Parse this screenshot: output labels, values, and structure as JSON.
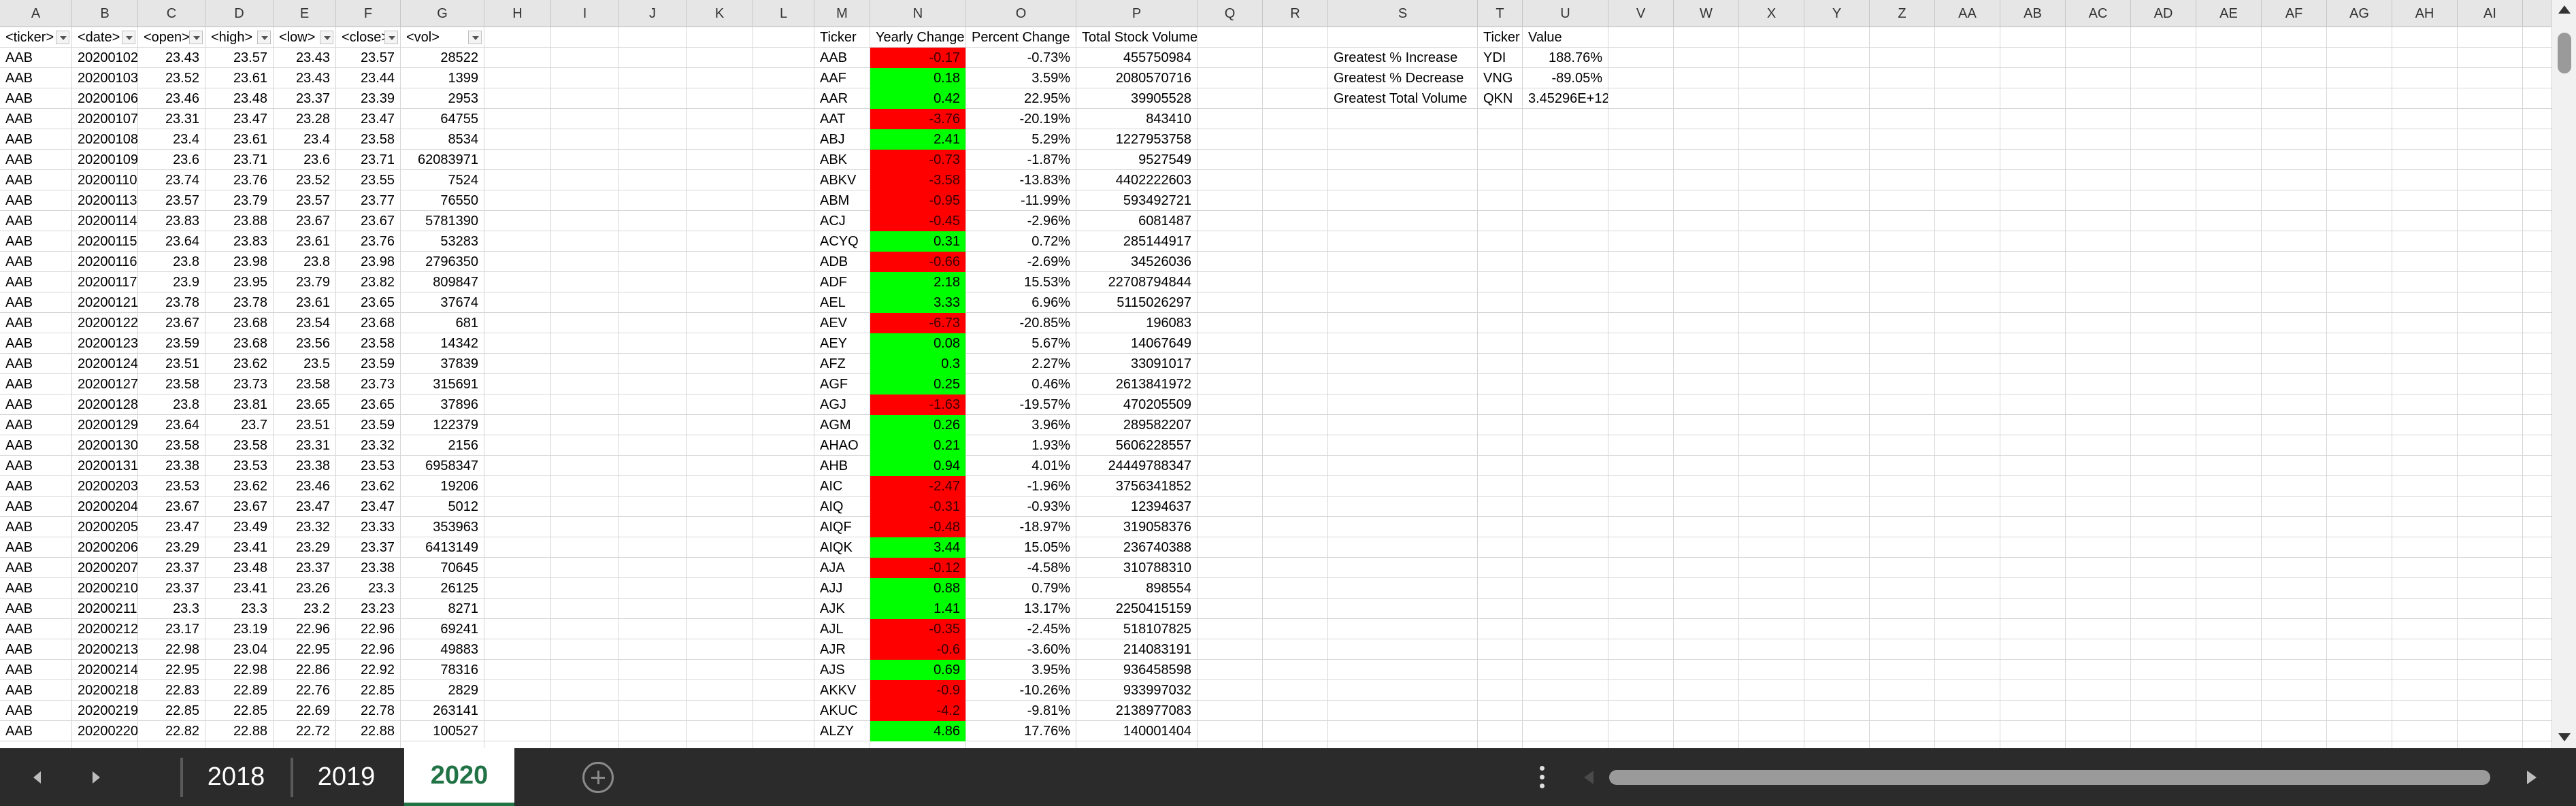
{
  "columns": [
    "A",
    "B",
    "C",
    "D",
    "E",
    "F",
    "G",
    "H",
    "I",
    "J",
    "K",
    "L",
    "M",
    "N",
    "O",
    "P",
    "Q",
    "R",
    "S",
    "T",
    "U",
    "V",
    "W",
    "X",
    "Y",
    "Z",
    "AA",
    "AB",
    "AC",
    "AD",
    "AE",
    "AF",
    "AG",
    "AH",
    "AI"
  ],
  "raw_headers": [
    "<ticker>",
    "<date>",
    "<open>",
    "<high>",
    "<low>",
    "<close>",
    "<vol>"
  ],
  "summary_headers": [
    "Ticker",
    "Yearly Change",
    "Percent Change",
    "Total Stock Volume"
  ],
  "raw_rows": [
    [
      "AAB",
      "20200102",
      "23.43",
      "23.57",
      "23.43",
      "23.57",
      "28522"
    ],
    [
      "AAB",
      "20200103",
      "23.52",
      "23.61",
      "23.43",
      "23.44",
      "1399"
    ],
    [
      "AAB",
      "20200106",
      "23.46",
      "23.48",
      "23.37",
      "23.39",
      "2953"
    ],
    [
      "AAB",
      "20200107",
      "23.31",
      "23.47",
      "23.28",
      "23.47",
      "64755"
    ],
    [
      "AAB",
      "20200108",
      "23.4",
      "23.61",
      "23.4",
      "23.58",
      "8534"
    ],
    [
      "AAB",
      "20200109",
      "23.6",
      "23.71",
      "23.6",
      "23.71",
      "62083971"
    ],
    [
      "AAB",
      "20200110",
      "23.74",
      "23.76",
      "23.52",
      "23.55",
      "7524"
    ],
    [
      "AAB",
      "20200113",
      "23.57",
      "23.79",
      "23.57",
      "23.77",
      "76550"
    ],
    [
      "AAB",
      "20200114",
      "23.83",
      "23.88",
      "23.67",
      "23.67",
      "5781390"
    ],
    [
      "AAB",
      "20200115",
      "23.64",
      "23.83",
      "23.61",
      "23.76",
      "53283"
    ],
    [
      "AAB",
      "20200116",
      "23.8",
      "23.98",
      "23.8",
      "23.98",
      "2796350"
    ],
    [
      "AAB",
      "20200117",
      "23.9",
      "23.95",
      "23.79",
      "23.82",
      "809847"
    ],
    [
      "AAB",
      "20200121",
      "23.78",
      "23.78",
      "23.61",
      "23.65",
      "37674"
    ],
    [
      "AAB",
      "20200122",
      "23.67",
      "23.68",
      "23.54",
      "23.68",
      "681"
    ],
    [
      "AAB",
      "20200123",
      "23.59",
      "23.68",
      "23.56",
      "23.58",
      "14342"
    ],
    [
      "AAB",
      "20200124",
      "23.51",
      "23.62",
      "23.5",
      "23.59",
      "37839"
    ],
    [
      "AAB",
      "20200127",
      "23.58",
      "23.73",
      "23.58",
      "23.73",
      "315691"
    ],
    [
      "AAB",
      "20200128",
      "23.8",
      "23.81",
      "23.65",
      "23.65",
      "37896"
    ],
    [
      "AAB",
      "20200129",
      "23.64",
      "23.7",
      "23.51",
      "23.59",
      "122379"
    ],
    [
      "AAB",
      "20200130",
      "23.58",
      "23.58",
      "23.31",
      "23.32",
      "2156"
    ],
    [
      "AAB",
      "20200131",
      "23.38",
      "23.53",
      "23.38",
      "23.53",
      "6958347"
    ],
    [
      "AAB",
      "20200203",
      "23.53",
      "23.62",
      "23.46",
      "23.62",
      "19206"
    ],
    [
      "AAB",
      "20200204",
      "23.67",
      "23.67",
      "23.47",
      "23.47",
      "5012"
    ],
    [
      "AAB",
      "20200205",
      "23.47",
      "23.49",
      "23.32",
      "23.33",
      "353963"
    ],
    [
      "AAB",
      "20200206",
      "23.29",
      "23.41",
      "23.29",
      "23.37",
      "6413149"
    ],
    [
      "AAB",
      "20200207",
      "23.37",
      "23.48",
      "23.37",
      "23.38",
      "70645"
    ],
    [
      "AAB",
      "20200210",
      "23.37",
      "23.41",
      "23.26",
      "23.3",
      "26125"
    ],
    [
      "AAB",
      "20200211",
      "23.3",
      "23.3",
      "23.2",
      "23.23",
      "8271"
    ],
    [
      "AAB",
      "20200212",
      "23.17",
      "23.19",
      "22.96",
      "22.96",
      "69241"
    ],
    [
      "AAB",
      "20200213",
      "22.98",
      "23.04",
      "22.95",
      "22.96",
      "49883"
    ],
    [
      "AAB",
      "20200214",
      "22.95",
      "22.98",
      "22.86",
      "22.92",
      "78316"
    ],
    [
      "AAB",
      "20200218",
      "22.83",
      "22.89",
      "22.76",
      "22.85",
      "2829"
    ],
    [
      "AAB",
      "20200219",
      "22.85",
      "22.85",
      "22.69",
      "22.78",
      "263141"
    ],
    [
      "AAB",
      "20200220",
      "22.82",
      "22.88",
      "22.72",
      "22.88",
      "100527"
    ]
  ],
  "summary_rows": [
    [
      "AAB",
      "-0.17",
      "-0.73%",
      "455750984",
      "neg"
    ],
    [
      "AAF",
      "0.18",
      "3.59%",
      "2080570716",
      "pos"
    ],
    [
      "AAR",
      "0.42",
      "22.95%",
      "39905528",
      "pos"
    ],
    [
      "AAT",
      "-3.76",
      "-20.19%",
      "843410",
      "neg"
    ],
    [
      "ABJ",
      "2.41",
      "5.29%",
      "1227953758",
      "pos"
    ],
    [
      "ABK",
      "-0.73",
      "-1.87%",
      "9527549",
      "neg"
    ],
    [
      "ABKV",
      "-3.58",
      "-13.83%",
      "4402222603",
      "neg"
    ],
    [
      "ABM",
      "-0.95",
      "-11.99%",
      "593492721",
      "neg"
    ],
    [
      "ACJ",
      "-0.45",
      "-2.96%",
      "6081487",
      "neg"
    ],
    [
      "ACYQ",
      "0.31",
      "0.72%",
      "285144917",
      "pos"
    ],
    [
      "ADB",
      "-0.66",
      "-2.69%",
      "34526036",
      "neg"
    ],
    [
      "ADF",
      "2.18",
      "15.53%",
      "22708794844",
      "pos"
    ],
    [
      "AEL",
      "3.33",
      "6.96%",
      "5115026297",
      "pos"
    ],
    [
      "AEV",
      "-6.73",
      "-20.85%",
      "196083",
      "neg"
    ],
    [
      "AEY",
      "0.08",
      "5.67%",
      "14067649",
      "pos"
    ],
    [
      "AFZ",
      "0.3",
      "2.27%",
      "33091017",
      "pos"
    ],
    [
      "AGF",
      "0.25",
      "0.46%",
      "2613841972",
      "pos"
    ],
    [
      "AGJ",
      "-1.63",
      "-19.57%",
      "470205509",
      "neg"
    ],
    [
      "AGM",
      "0.26",
      "3.96%",
      "289582207",
      "pos"
    ],
    [
      "AHAO",
      "0.21",
      "1.93%",
      "5606228557",
      "pos"
    ],
    [
      "AHB",
      "0.94",
      "4.01%",
      "24449788347",
      "pos"
    ],
    [
      "AIC",
      "-2.47",
      "-1.96%",
      "3756341852",
      "neg"
    ],
    [
      "AIQ",
      "-0.31",
      "-0.93%",
      "12394637",
      "neg"
    ],
    [
      "AIQF",
      "-0.48",
      "-18.97%",
      "319058376",
      "neg"
    ],
    [
      "AIQK",
      "3.44",
      "15.05%",
      "236740388",
      "pos"
    ],
    [
      "AJA",
      "-0.12",
      "-4.58%",
      "310788310",
      "neg"
    ],
    [
      "AJJ",
      "0.88",
      "0.79%",
      "898554",
      "pos"
    ],
    [
      "AJK",
      "1.41",
      "13.17%",
      "2250415159",
      "pos"
    ],
    [
      "AJL",
      "-0.35",
      "-2.45%",
      "518107825",
      "neg"
    ],
    [
      "AJR",
      "-0.6",
      "-3.60%",
      "214083191",
      "neg"
    ],
    [
      "AJS",
      "0.69",
      "3.95%",
      "936458598",
      "pos"
    ],
    [
      "AKKV",
      "-0.9",
      "-10.26%",
      "933997032",
      "neg"
    ],
    [
      "AKUC",
      "-4.2",
      "-9.81%",
      "2138977083",
      "neg"
    ],
    [
      "ALZY",
      "4.86",
      "17.76%",
      "140001404",
      "pos"
    ]
  ],
  "greatest": {
    "headers": [
      "Ticker",
      "Value"
    ],
    "rows": [
      [
        "Greatest % Increase",
        "YDI",
        "188.76%"
      ],
      [
        "Greatest % Decrease",
        "VNG",
        "-89.05%"
      ],
      [
        "Greatest Total Volume",
        "QKN",
        "3.45296E+12"
      ]
    ]
  },
  "sheet_tabs": [
    "2018",
    "2019",
    "2020"
  ],
  "active_sheet": "2020",
  "colors": {
    "positive": "#00ff00",
    "negative": "#ff0000",
    "accent": "#217346"
  },
  "icons": [
    "chevron-left-icon",
    "chevron-right-icon",
    "add-sheet-icon",
    "more-options-icon",
    "filter-dropdown-icon"
  ]
}
